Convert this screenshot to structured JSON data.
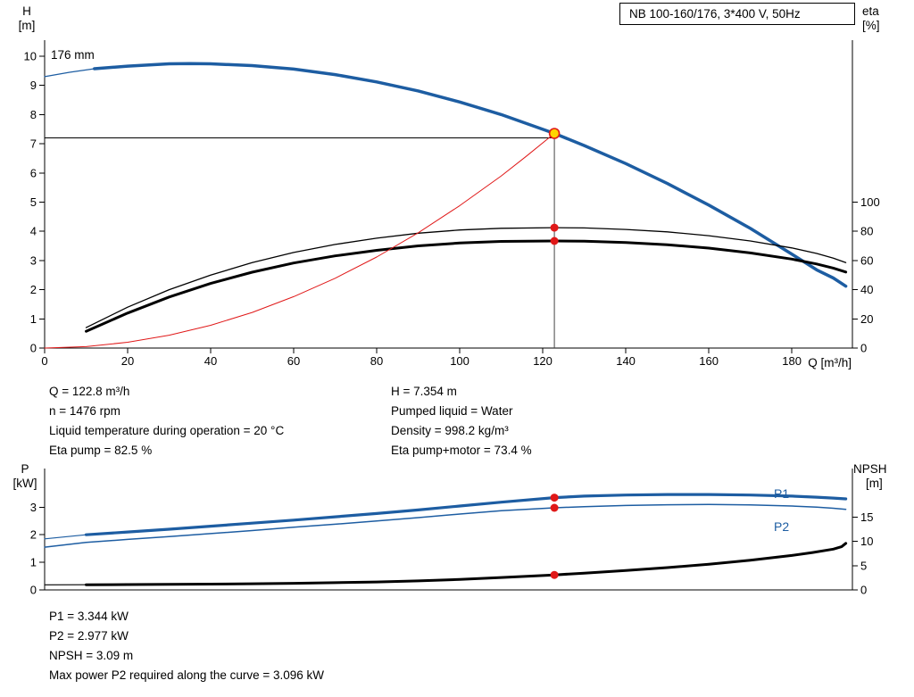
{
  "colors": {
    "curve_blue": "#1d5da2",
    "system_red": "#e01818",
    "dot_red": "#e01818",
    "duty_yellow": "#ffd400",
    "black": "#000000"
  },
  "info": {
    "left": [
      "Q = 122.8 m³/h",
      "n = 1476 rpm",
      "Liquid temperature during operation = 20 °C",
      "Eta pump = 82.5 %"
    ],
    "right": [
      "H = 7.354 m",
      "Pumped liquid = Water",
      "Density = 998.2 kg/m³",
      "Eta pump+motor = 73.4 %"
    ]
  },
  "results": [
    "P1 = 3.344 kW",
    "P2 = 2.977 kW",
    "NPSH = 3.09 m",
    "Max power P2 required along the curve = 3.096 kW"
  ],
  "chart_data": [
    {
      "id": "hq",
      "type": "line",
      "title": "NB 100-160/176, 3*400 V, 50Hz",
      "curve_label": "176 mm",
      "x_axis": {
        "label": "Q [m³/h]",
        "ticks": [
          0,
          20,
          40,
          60,
          80,
          100,
          120,
          140,
          160,
          180
        ],
        "range": [
          0,
          194.6
        ]
      },
      "y_left": {
        "name": "H",
        "unit": "[m]",
        "ticks": [
          0,
          1,
          2,
          3,
          4,
          5,
          6,
          7,
          8,
          9,
          10
        ],
        "range": [
          0,
          10.55
        ]
      },
      "y_right": {
        "name": "eta",
        "unit": "[%]",
        "ticks": [
          0,
          20,
          40,
          60,
          80,
          100
        ],
        "range": [
          0,
          211
        ]
      },
      "grid": false,
      "duty_point": {
        "q": 122.8,
        "h": 7.354
      },
      "ref_lines": {
        "horizontal_h": 7.2,
        "vertical_q": 122.8
      },
      "series": [
        {
          "name": "head-176mm-leadin",
          "axis": "left",
          "color": "blue",
          "width": 1.2,
          "points": [
            [
              0,
              9.3
            ],
            [
              6,
              9.45
            ],
            [
              12,
              9.57
            ]
          ]
        },
        {
          "name": "head-176mm",
          "axis": "left",
          "color": "blue",
          "width": 3.5,
          "points": [
            [
              12,
              9.57
            ],
            [
              20,
              9.66
            ],
            [
              30,
              9.74
            ],
            [
              35,
              9.75
            ],
            [
              40,
              9.74
            ],
            [
              50,
              9.68
            ],
            [
              60,
              9.56
            ],
            [
              70,
              9.37
            ],
            [
              80,
              9.12
            ],
            [
              90,
              8.81
            ],
            [
              100,
              8.43
            ],
            [
              110,
              8.0
            ],
            [
              122.8,
              7.354
            ],
            [
              130,
              6.94
            ],
            [
              140,
              6.32
            ],
            [
              150,
              5.64
            ],
            [
              160,
              4.9
            ],
            [
              170,
              4.1
            ],
            [
              180,
              3.22
            ],
            [
              186,
              2.68
            ],
            [
              190,
              2.4
            ],
            [
              193,
              2.12
            ]
          ]
        },
        {
          "name": "eta-pump",
          "axis": "right",
          "color": "black",
          "width": 1.3,
          "points": [
            [
              10,
              14
            ],
            [
              20,
              28
            ],
            [
              30,
              40
            ],
            [
              40,
              50
            ],
            [
              50,
              58.5
            ],
            [
              60,
              65.5
            ],
            [
              70,
              71
            ],
            [
              80,
              75.3
            ],
            [
              90,
              78.7
            ],
            [
              100,
              80.9
            ],
            [
              110,
              82.1
            ],
            [
              122.8,
              82.5
            ],
            [
              130,
              82.3
            ],
            [
              140,
              81.3
            ],
            [
              150,
              79.6
            ],
            [
              160,
              77
            ],
            [
              170,
              73.4
            ],
            [
              180,
              68.6
            ],
            [
              186,
              64.8
            ],
            [
              190,
              61.6
            ],
            [
              193,
              58.6
            ]
          ]
        },
        {
          "name": "eta-pump-motor",
          "axis": "right",
          "color": "black",
          "width": 3,
          "points": [
            [
              10,
              11.5
            ],
            [
              20,
              24
            ],
            [
              30,
              35
            ],
            [
              40,
              44.3
            ],
            [
              50,
              52
            ],
            [
              60,
              58.3
            ],
            [
              70,
              63.2
            ],
            [
              80,
              67
            ],
            [
              90,
              70
            ],
            [
              100,
              72
            ],
            [
              110,
              73.1
            ],
            [
              122.8,
              73.4
            ],
            [
              130,
              73.2
            ],
            [
              140,
              72.3
            ],
            [
              150,
              70.8
            ],
            [
              160,
              68.5
            ],
            [
              170,
              65.2
            ],
            [
              180,
              61
            ],
            [
              186,
              57.6
            ],
            [
              190,
              54.8
            ],
            [
              193,
              52.1
            ]
          ]
        },
        {
          "name": "system-curve",
          "axis": "left",
          "color": "red",
          "width": 1,
          "points": [
            [
              0,
              0
            ],
            [
              10,
              0.05
            ],
            [
              20,
              0.2
            ],
            [
              30,
              0.44
            ],
            [
              40,
              0.78
            ],
            [
              50,
              1.22
            ],
            [
              60,
              1.76
            ],
            [
              70,
              2.39
            ],
            [
              80,
              3.12
            ],
            [
              90,
              3.95
            ],
            [
              100,
              4.88
            ],
            [
              110,
              5.9
            ],
            [
              116,
              6.57
            ],
            [
              122.8,
              7.354
            ]
          ]
        }
      ],
      "markers": [
        {
          "name": "duty-point",
          "style": "duty",
          "axis": "left",
          "q": 122.8,
          "value": 7.354
        },
        {
          "name": "operating-point-eta-pump",
          "style": "dot",
          "axis": "right",
          "q": 122.8,
          "value": 82.5
        },
        {
          "name": "operating-point-eta-pump-motor",
          "style": "dot",
          "axis": "right",
          "q": 122.8,
          "value": 73.4
        }
      ]
    },
    {
      "id": "power-npsh",
      "type": "line",
      "series_labels": {
        "p1": "P1",
        "p2": "P2"
      },
      "x_axis": {
        "label": "",
        "ticks": [],
        "range": [
          0,
          194.6
        ]
      },
      "y_left": {
        "name": "P",
        "unit": "[kW]",
        "ticks": [
          0,
          1,
          2,
          3
        ],
        "range": [
          0,
          4.4
        ]
      },
      "y_right": {
        "name": "NPSH",
        "unit": "[m]",
        "ticks": [
          0,
          5,
          10,
          15
        ],
        "range": [
          0,
          25
        ]
      },
      "grid": false,
      "series": [
        {
          "name": "p1-leadin",
          "axis": "left",
          "color": "blue",
          "width": 1.2,
          "points": [
            [
              0,
              1.85
            ],
            [
              10,
              2.0
            ]
          ]
        },
        {
          "name": "p1-power",
          "axis": "left",
          "color": "blue",
          "width": 3.2,
          "points": [
            [
              10,
              2.0
            ],
            [
              20,
              2.1
            ],
            [
              30,
              2.2
            ],
            [
              40,
              2.31
            ],
            [
              50,
              2.42
            ],
            [
              60,
              2.53
            ],
            [
              70,
              2.65
            ],
            [
              80,
              2.77
            ],
            [
              90,
              2.9
            ],
            [
              100,
              3.04
            ],
            [
              110,
              3.18
            ],
            [
              122.8,
              3.344
            ],
            [
              130,
              3.4
            ],
            [
              140,
              3.44
            ],
            [
              150,
              3.46
            ],
            [
              160,
              3.46
            ],
            [
              170,
              3.44
            ],
            [
              180,
              3.4
            ],
            [
              186,
              3.36
            ],
            [
              190,
              3.33
            ],
            [
              193,
              3.3
            ]
          ]
        },
        {
          "name": "p2-power",
          "axis": "left",
          "color": "blue",
          "width": 1.5,
          "points": [
            [
              0,
              1.55
            ],
            [
              10,
              1.72
            ],
            [
              20,
              1.83
            ],
            [
              30,
              1.93
            ],
            [
              40,
              2.04
            ],
            [
              50,
              2.15
            ],
            [
              60,
              2.27
            ],
            [
              70,
              2.38
            ],
            [
              80,
              2.5
            ],
            [
              90,
              2.62
            ],
            [
              100,
              2.75
            ],
            [
              110,
              2.87
            ],
            [
              122.8,
              2.977
            ],
            [
              130,
              3.02
            ],
            [
              140,
              3.06
            ],
            [
              150,
              3.085
            ],
            [
              160,
              3.096
            ],
            [
              170,
              3.08
            ],
            [
              180,
              3.04
            ],
            [
              186,
              3.0
            ],
            [
              190,
              2.96
            ],
            [
              193,
              2.92
            ]
          ]
        },
        {
          "name": "npsh-leadin",
          "axis": "right",
          "color": "black",
          "width": 1.2,
          "points": [
            [
              0,
              1.05
            ],
            [
              10,
              1.06
            ]
          ]
        },
        {
          "name": "npsh",
          "axis": "right",
          "color": "black",
          "width": 3,
          "points": [
            [
              10,
              1.06
            ],
            [
              20,
              1.1
            ],
            [
              30,
              1.14
            ],
            [
              40,
              1.2
            ],
            [
              50,
              1.27
            ],
            [
              60,
              1.36
            ],
            [
              70,
              1.48
            ],
            [
              80,
              1.63
            ],
            [
              90,
              1.85
            ],
            [
              100,
              2.15
            ],
            [
              110,
              2.55
            ],
            [
              122.8,
              3.09
            ],
            [
              130,
              3.45
            ],
            [
              140,
              4.0
            ],
            [
              150,
              4.6
            ],
            [
              160,
              5.3
            ],
            [
              170,
              6.1
            ],
            [
              180,
              7.1
            ],
            [
              185,
              7.7
            ],
            [
              190,
              8.4
            ],
            [
              192,
              8.9
            ],
            [
              193,
              9.6
            ]
          ]
        }
      ],
      "markers": [
        {
          "name": "operating-point-p1",
          "style": "dot",
          "axis": "left",
          "q": 122.8,
          "value": 3.344
        },
        {
          "name": "operating-point-p2",
          "style": "dot",
          "axis": "left",
          "q": 122.8,
          "value": 2.977
        },
        {
          "name": "operating-point-npsh",
          "style": "dot",
          "axis": "right",
          "q": 122.8,
          "value": 3.09
        }
      ]
    }
  ]
}
